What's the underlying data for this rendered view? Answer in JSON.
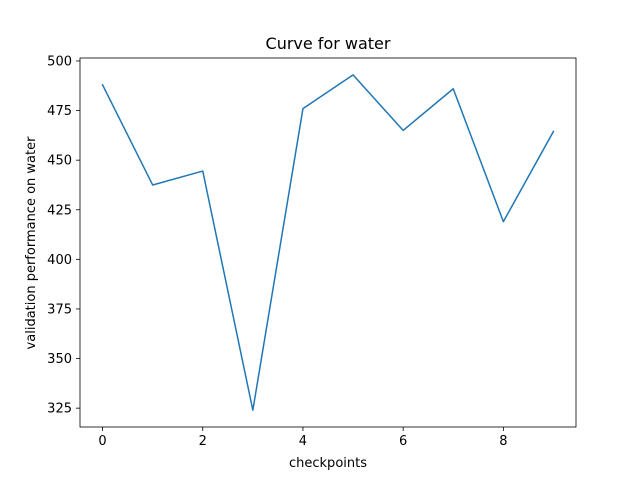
{
  "chart_data": {
    "type": "line",
    "title": "Curve for water",
    "xlabel": "checkpoints",
    "ylabel": "validation performance on water",
    "x": [
      0,
      1,
      2,
      3,
      4,
      5,
      6,
      7,
      8,
      9
    ],
    "series": [
      {
        "values": [
          488,
          437.5,
          444.5,
          324,
          476,
          493,
          465,
          486,
          419,
          464.5
        ],
        "color": "#1f77b4"
      }
    ],
    "xlim": [
      -0.45,
      9.45
    ],
    "ylim": [
      315.5,
      501.5
    ],
    "xticks": [
      0,
      2,
      4,
      6,
      8
    ],
    "yticks": [
      325,
      350,
      375,
      400,
      425,
      450,
      475,
      500
    ],
    "grid": false,
    "legend": "none"
  }
}
